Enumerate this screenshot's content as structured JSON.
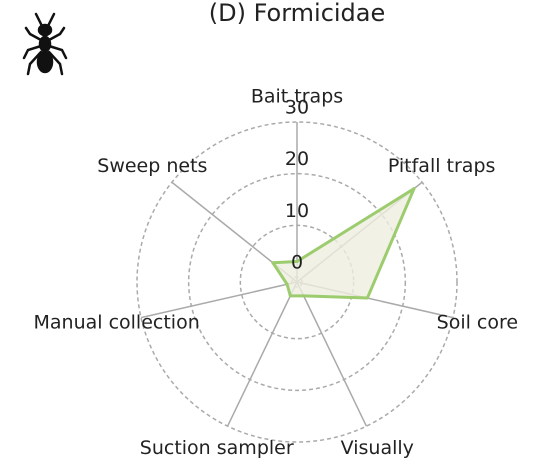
{
  "chart_data": {
    "type": "radar",
    "title": "(D) Formicidae",
    "categories": [
      "Bait traps",
      "Pitfall traps",
      "Soil core",
      "Visually",
      "Suction sampler",
      "Manual collection",
      "Sweep nets"
    ],
    "values": [
      3,
      28,
      13,
      2,
      2,
      1,
      5
    ],
    "color": "#9ccc6e",
    "fill": "#eeeedf",
    "ylim": [
      0,
      30
    ],
    "yticks": [
      0,
      10,
      20,
      30
    ],
    "grid": true
  }
}
